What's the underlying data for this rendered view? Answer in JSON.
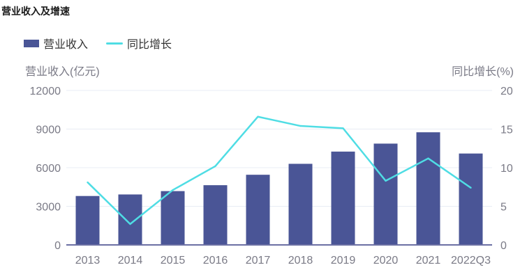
{
  "title": "营业收入及增速",
  "colors": {
    "bar": "#4a5596",
    "line": "#4fdde4",
    "grid": "#e8ecf4",
    "axis": "#6b6fa3"
  },
  "chart_data": {
    "type": "bar",
    "categories": [
      "2013",
      "2014",
      "2015",
      "2016",
      "2017",
      "2018",
      "2019",
      "2020",
      "2021",
      "2022Q3"
    ],
    "series": [
      {
        "name": "营业收入",
        "type": "bar",
        "axis": "left",
        "values": [
          3800,
          3920,
          4180,
          4640,
          5450,
          6300,
          7250,
          7870,
          8750,
          7100
        ]
      },
      {
        "name": "同比增长",
        "type": "line",
        "axis": "right",
        "values": [
          8.1,
          2.7,
          7.1,
          10.2,
          16.6,
          15.4,
          15.1,
          8.3,
          11.2,
          7.4
        ]
      }
    ],
    "ylabel_left": "营业收入(亿元)",
    "ylabel_right": "同比增长(%)",
    "ylim_left": [
      0,
      12000
    ],
    "ylim_right": [
      0,
      20
    ],
    "yticks_left": [
      "0",
      "3000",
      "6000",
      "9000",
      "12000"
    ],
    "yticks_right": [
      "0",
      "5",
      "10",
      "15",
      "20"
    ],
    "grid": true,
    "legend_position": "top-left"
  }
}
